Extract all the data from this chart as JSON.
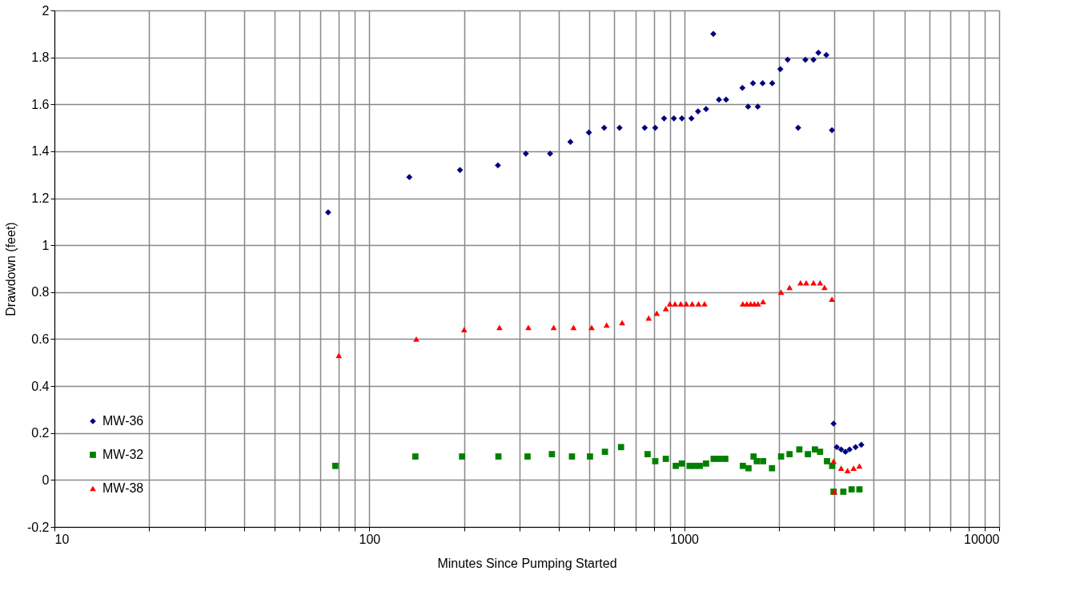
{
  "chart_data": {
    "type": "scatter",
    "xlabel": "Minutes Since Pumping Started",
    "ylabel": "Drawdown (feet)",
    "log": "x",
    "grid": true,
    "legend": "bottom left",
    "xlim": [
      10,
      10000
    ],
    "xticks": [
      10,
      {
        "value": 20,
        "label": null
      },
      {
        "value": 30,
        "label": null
      },
      {
        "value": 40,
        "label": null
      },
      {
        "value": 50,
        "label": null
      },
      {
        "value": 60,
        "label": null
      },
      {
        "value": 70,
        "label": null
      },
      {
        "value": 80,
        "label": null
      },
      {
        "value": 90,
        "label": null
      },
      100,
      {
        "value": 200,
        "label": null
      },
      {
        "value": 300,
        "label": null
      },
      {
        "value": 400,
        "label": null
      },
      {
        "value": 500,
        "label": null
      },
      {
        "value": 600,
        "label": null
      },
      {
        "value": 700,
        "label": null
      },
      {
        "value": 800,
        "label": null
      },
      {
        "value": 900,
        "label": null
      },
      1000,
      {
        "value": 2000,
        "label": null
      },
      {
        "value": 3000,
        "label": null
      },
      {
        "value": 4000,
        "label": null
      },
      {
        "value": 5000,
        "label": null
      },
      {
        "value": 6000,
        "label": null
      },
      {
        "value": 7000,
        "label": null
      },
      {
        "value": 8000,
        "label": null
      },
      {
        "value": 9000,
        "label": null
      },
      10000
    ],
    "ylim": [
      -0.2,
      2
    ],
    "yticks": [
      -0.2,
      0,
      0.2,
      0.4,
      0.6,
      0.8,
      1,
      1.2,
      1.4,
      1.6,
      1.8,
      2
    ],
    "series": [
      {
        "name": "MW-36",
        "color": "#000080",
        "marker": "diamond",
        "x": [
          74,
          134,
          194,
          256,
          314,
          375,
          435,
          498,
          557,
          623,
          749,
          809,
          863,
          927,
          983,
          1054,
          1106,
          1173,
          1237,
          1289,
          1358,
          1530,
          1595,
          1653,
          1712,
          1774,
          1903,
          2019,
          2130,
          2300,
          2425,
          2573,
          2666,
          2826,
          2945,
          2980,
          3050,
          3150,
          3250,
          3350,
          3500,
          3650
        ],
        "values": [
          1.14,
          1.29,
          1.32,
          1.34,
          1.39,
          1.39,
          1.44,
          1.48,
          1.5,
          1.5,
          1.5,
          1.5,
          1.54,
          1.54,
          1.54,
          1.54,
          1.57,
          1.58,
          1.9,
          1.62,
          1.62,
          1.67,
          1.59,
          1.69,
          1.59,
          1.69,
          1.69,
          1.75,
          1.79,
          1.5,
          1.79,
          1.79,
          1.82,
          1.81,
          1.49,
          0.24,
          0.14,
          0.13,
          0.12,
          0.13,
          0.14,
          0.15
        ]
      },
      {
        "name": "MW-32",
        "color": "#008000",
        "marker": "square",
        "x": [
          78,
          140,
          197,
          257,
          318,
          380,
          440,
          502,
          560,
          630,
          765,
          809,
          874,
          940,
          983,
          1040,
          1080,
          1120,
          1173,
          1240,
          1290,
          1350,
          1535,
          1600,
          1660,
          1700,
          1780,
          1900,
          2030,
          2160,
          2320,
          2470,
          2600,
          2700,
          2840,
          2950,
          2980,
          3200,
          3400,
          3600
        ],
        "values": [
          0.06,
          0.1,
          0.1,
          0.1,
          0.1,
          0.11,
          0.1,
          0.1,
          0.12,
          0.14,
          0.11,
          0.08,
          0.09,
          0.06,
          0.07,
          0.06,
          0.06,
          0.06,
          0.07,
          0.09,
          0.09,
          0.09,
          0.06,
          0.05,
          0.1,
          0.08,
          0.08,
          0.05,
          0.1,
          0.11,
          0.13,
          0.11,
          0.13,
          0.12,
          0.08,
          0.06,
          -0.05,
          -0.05,
          -0.04,
          -0.04
        ]
      },
      {
        "name": "MW-38",
        "color": "#ff0000",
        "marker": "triangle",
        "x": [
          80,
          141,
          200,
          259,
          320,
          385,
          445,
          508,
          567,
          635,
          771,
          818,
          874,
          900,
          935,
          975,
          1015,
          1060,
          1110,
          1160,
          1535,
          1580,
          1625,
          1670,
          1715,
          1780,
          2030,
          2160,
          2340,
          2440,
          2573,
          2700,
          2790,
          2945,
          2980,
          3000,
          3150,
          3300,
          3450,
          3600
        ],
        "values": [
          0.53,
          0.6,
          0.64,
          0.65,
          0.65,
          0.65,
          0.65,
          0.65,
          0.66,
          0.67,
          0.69,
          0.71,
          0.73,
          0.75,
          0.75,
          0.75,
          0.75,
          0.75,
          0.75,
          0.75,
          0.75,
          0.75,
          0.75,
          0.75,
          0.75,
          0.76,
          0.8,
          0.82,
          0.84,
          0.84,
          0.84,
          0.84,
          0.82,
          0.77,
          0.08,
          -0.05,
          0.05,
          0.04,
          0.05,
          0.06
        ]
      }
    ]
  }
}
